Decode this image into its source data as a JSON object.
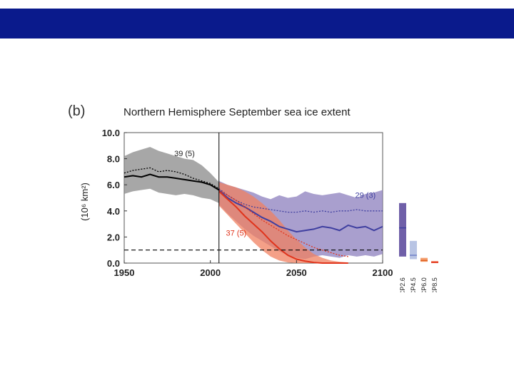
{
  "slide": {
    "header_color": "#0a1a8c"
  },
  "figure": {
    "panel_label": "(b)"
  },
  "chart_data": {
    "type": "line",
    "title": "Northern Hemisphere September sea ice extent",
    "ylabel": "(10⁶ km²)",
    "xlabel": "",
    "xlim": [
      1950,
      2100
    ],
    "ylim": [
      0,
      10
    ],
    "x_ticks": [
      1950,
      2000,
      2050,
      2100
    ],
    "y_ticks": [
      0.0,
      2.0,
      4.0,
      6.0,
      8.0,
      10.0
    ],
    "y_tick_labels": [
      "0.0",
      "2.0",
      "4.0",
      "6.0",
      "8.0",
      "10.0"
    ],
    "reference_year": 2005,
    "threshold": 1.0,
    "colors": {
      "historical": "#000000",
      "rcp26": "#3f3fa0",
      "rcp85": "#e0341c"
    },
    "series": [
      {
        "name": "historical",
        "color": "#000000",
        "band_color": "#8a8a8a",
        "x": [
          1950,
          1955,
          1960,
          1965,
          1970,
          1975,
          1980,
          1985,
          1990,
          1995,
          2000,
          2005
        ],
        "mean": [
          6.6,
          6.7,
          6.6,
          6.8,
          6.6,
          6.6,
          6.5,
          6.4,
          6.3,
          6.2,
          6.0,
          5.6
        ],
        "observed": [
          6.9,
          7.1,
          7.2,
          7.3,
          7.0,
          7.1,
          7.0,
          6.8,
          6.5,
          6.3,
          6.1,
          5.7
        ],
        "lower": [
          5.3,
          5.5,
          5.6,
          5.7,
          5.4,
          5.3,
          5.2,
          5.3,
          5.2,
          5.0,
          4.9,
          4.6
        ],
        "upper": [
          8.2,
          8.5,
          8.7,
          8.9,
          8.6,
          8.4,
          8.2,
          8.0,
          7.9,
          7.5,
          6.9,
          6.2
        ]
      },
      {
        "name": "RCP2.6",
        "color": "#3f3fa0",
        "band_color": "#8c7fbe",
        "x": [
          2005,
          2010,
          2015,
          2020,
          2025,
          2030,
          2035,
          2040,
          2045,
          2050,
          2055,
          2060,
          2065,
          2070,
          2075,
          2080,
          2085,
          2090,
          2095,
          2100
        ],
        "mean": [
          5.6,
          5.0,
          4.6,
          4.3,
          3.9,
          3.5,
          3.2,
          2.8,
          2.6,
          2.4,
          2.5,
          2.6,
          2.8,
          2.7,
          2.5,
          2.9,
          2.7,
          2.8,
          2.5,
          2.8
        ],
        "observed": [
          5.7,
          5.2,
          4.8,
          4.5,
          4.3,
          4.2,
          4.1,
          4.0,
          3.9,
          3.9,
          4.0,
          3.9,
          4.0,
          3.9,
          4.0,
          4.0,
          4.1,
          4.0,
          4.0,
          4.0
        ],
        "lower": [
          4.5,
          3.8,
          3.2,
          2.6,
          2.1,
          1.7,
          1.3,
          0.9,
          0.6,
          0.4,
          0.3,
          0.5,
          0.6,
          0.5,
          0.4,
          0.6,
          0.5,
          0.6,
          0.5,
          0.7
        ],
        "upper": [
          6.3,
          6.0,
          5.8,
          5.6,
          5.4,
          5.1,
          4.9,
          5.2,
          5.0,
          5.1,
          5.5,
          5.3,
          5.2,
          5.3,
          5.4,
          5.2,
          5.0,
          5.3,
          5.4,
          5.6
        ]
      },
      {
        "name": "RCP8.5",
        "color": "#e0341c",
        "band_color": "#f08060",
        "x": [
          2005,
          2010,
          2015,
          2020,
          2025,
          2030,
          2035,
          2040,
          2045,
          2050,
          2055,
          2060,
          2065,
          2070,
          2075,
          2080
        ],
        "mean": [
          5.5,
          4.9,
          4.3,
          3.6,
          3.0,
          2.4,
          1.7,
          1.1,
          0.6,
          0.3,
          0.15,
          0.05,
          0.0,
          0.0,
          0.0,
          0.0
        ],
        "observed": [
          5.6,
          5.2,
          4.8,
          4.3,
          3.8,
          3.3,
          2.9,
          2.5,
          2.1,
          1.8,
          1.5,
          1.2,
          1.0,
          0.8,
          0.6,
          0.5
        ],
        "lower": [
          4.4,
          3.7,
          3.0,
          2.3,
          1.6,
          1.0,
          0.5,
          0.2,
          0.05,
          0.0,
          0.0,
          0.0,
          0.0,
          0.0,
          0.0,
          0.0
        ],
        "upper": [
          6.2,
          6.0,
          5.8,
          5.5,
          5.1,
          4.6,
          4.0,
          3.3,
          2.5,
          1.8,
          1.2,
          0.7,
          0.4,
          0.2,
          0.1,
          0.05
        ]
      }
    ],
    "annotations": [
      {
        "text": "39 (5)",
        "x": 1985,
        "y": 8.2,
        "color": "#222222"
      },
      {
        "text": "29 (3)",
        "x": 2090,
        "y": 5.0,
        "color": "#3f3fa0"
      },
      {
        "text": "37 (5)",
        "x": 2015,
        "y": 2.1,
        "color": "#e0341c"
      }
    ],
    "side_bars": [
      {
        "label": "RCP2.6",
        "min": 0.5,
        "max": 4.6,
        "mean": 2.7,
        "color": "#6f5fa8",
        "line_color": "#3f3fa0"
      },
      {
        "label": "RCP4.5",
        "min": 0.3,
        "max": 1.7,
        "mean": 0.6,
        "color": "#b8c4e4",
        "line_color": "#6f7fc8"
      },
      {
        "label": "RCP6.0",
        "min": 0.1,
        "max": 0.4,
        "mean": 0.2,
        "color": "#f4a070",
        "line_color": "#e06020"
      },
      {
        "label": "RCP8.5",
        "min": 0.0,
        "max": 0.15,
        "mean": 0.05,
        "color": "#f07050",
        "line_color": "#e0341c"
      }
    ]
  }
}
